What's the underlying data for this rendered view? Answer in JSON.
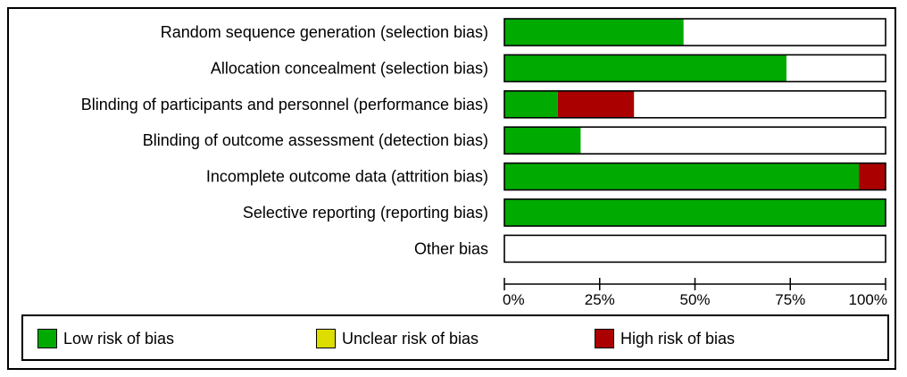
{
  "chart_data": {
    "type": "bar",
    "subtype": "stacked-horizontal-percent",
    "categories": [
      "Random sequence generation (selection bias)",
      "Allocation concealment (selection bias)",
      "Blinding of participants and personnel (performance bias)",
      "Blinding of outcome assessment (detection bias)",
      "Incomplete outcome data (attrition bias)",
      "Selective reporting (reporting bias)",
      "Other bias"
    ],
    "series": [
      {
        "name": "Low risk of bias",
        "color": "#00aa00",
        "values": [
          47,
          74,
          14,
          20,
          93,
          100,
          0
        ]
      },
      {
        "name": "Unclear risk of bias",
        "color": "#dddd00",
        "values": [
          0,
          0,
          0,
          0,
          0,
          0,
          0
        ]
      },
      {
        "name": "High risk of bias",
        "color": "#aa0000",
        "values": [
          0,
          0,
          20,
          0,
          7,
          0,
          0
        ]
      }
    ],
    "xlim": [
      0,
      100
    ],
    "xticks": [
      "0%",
      "25%",
      "50%",
      "75%",
      "100%"
    ],
    "tick_values": [
      0,
      25,
      50,
      75,
      100
    ],
    "grid": false,
    "legend_position": "bottom"
  }
}
